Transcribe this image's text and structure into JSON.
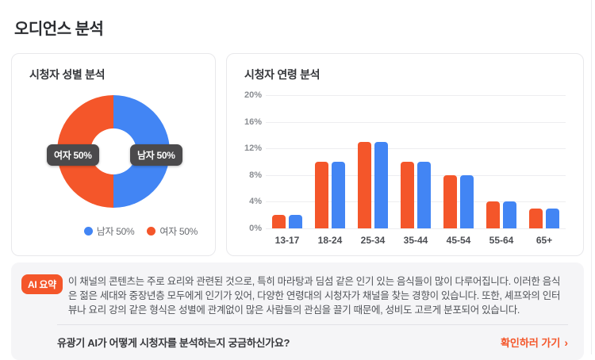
{
  "page_title": "오디언스 분석",
  "colors": {
    "accent_orange": "#F4562A",
    "male_blue": "#4285F4",
    "female_orange": "#F4562A",
    "tooltip_bg": "#4B4A4C",
    "grid_gray": "#EDEDF0",
    "summary_bg": "#F5F5F7"
  },
  "chart_data": [
    {
      "type": "pie",
      "donut": true,
      "title": "시청자 성별 분석",
      "unit": "%",
      "slices": [
        {
          "label": "남자",
          "value": 50,
          "color": "#4285F4",
          "tooltip": "남자 50%",
          "legend": "남자 50%"
        },
        {
          "label": "여자",
          "value": 50,
          "color": "#F4562A",
          "tooltip": "여자 50%",
          "legend": "여자 50%"
        }
      ],
      "legend_position": "bottom-right"
    },
    {
      "type": "bar",
      "title": "시청자 연령 분석",
      "categories": [
        "13-17",
        "18-24",
        "25-34",
        "35-44",
        "45-54",
        "55-64",
        "65+"
      ],
      "series": [
        {
          "name": "여자",
          "color": "#F4562A",
          "values": [
            2,
            10,
            13,
            10,
            8,
            4,
            3
          ]
        },
        {
          "name": "남자",
          "color": "#4285F4",
          "values": [
            2,
            10,
            13,
            10,
            8,
            4,
            3
          ]
        }
      ],
      "unit": "%",
      "ylim": [
        0,
        20
      ],
      "y_ticks": [
        "20%",
        "16%",
        "12%",
        "8%",
        "4%",
        "0%"
      ],
      "grid": true,
      "legend_position": "none"
    }
  ],
  "summary": {
    "badge_label": "AI 요약",
    "text": "이 채널의 콘텐츠는 주로 요리와 관련된 것으로, 특히 마라탕과 딤섬 같은 인기 있는 음식들이 많이 다루어집니다. 이러한 음식은 젊은 세대와 중장년층 모두에게 인기가 있어, 다양한 연령대의 시청자가 채널을 찾는 경향이 있습니다. 또한, 셰프와의 인터뷰나 요리 강의 같은 형식은 성별에 관계없이 많은 사람들의 관심을 끌기 때문에, 성비도 고르게 분포되어 있습니다.",
    "question": "유광기 AI가 어떻게 시청자를 분석하는지 궁금하신가요?",
    "cta_label": "확인하러 가기",
    "cta_arrow": "›"
  }
}
